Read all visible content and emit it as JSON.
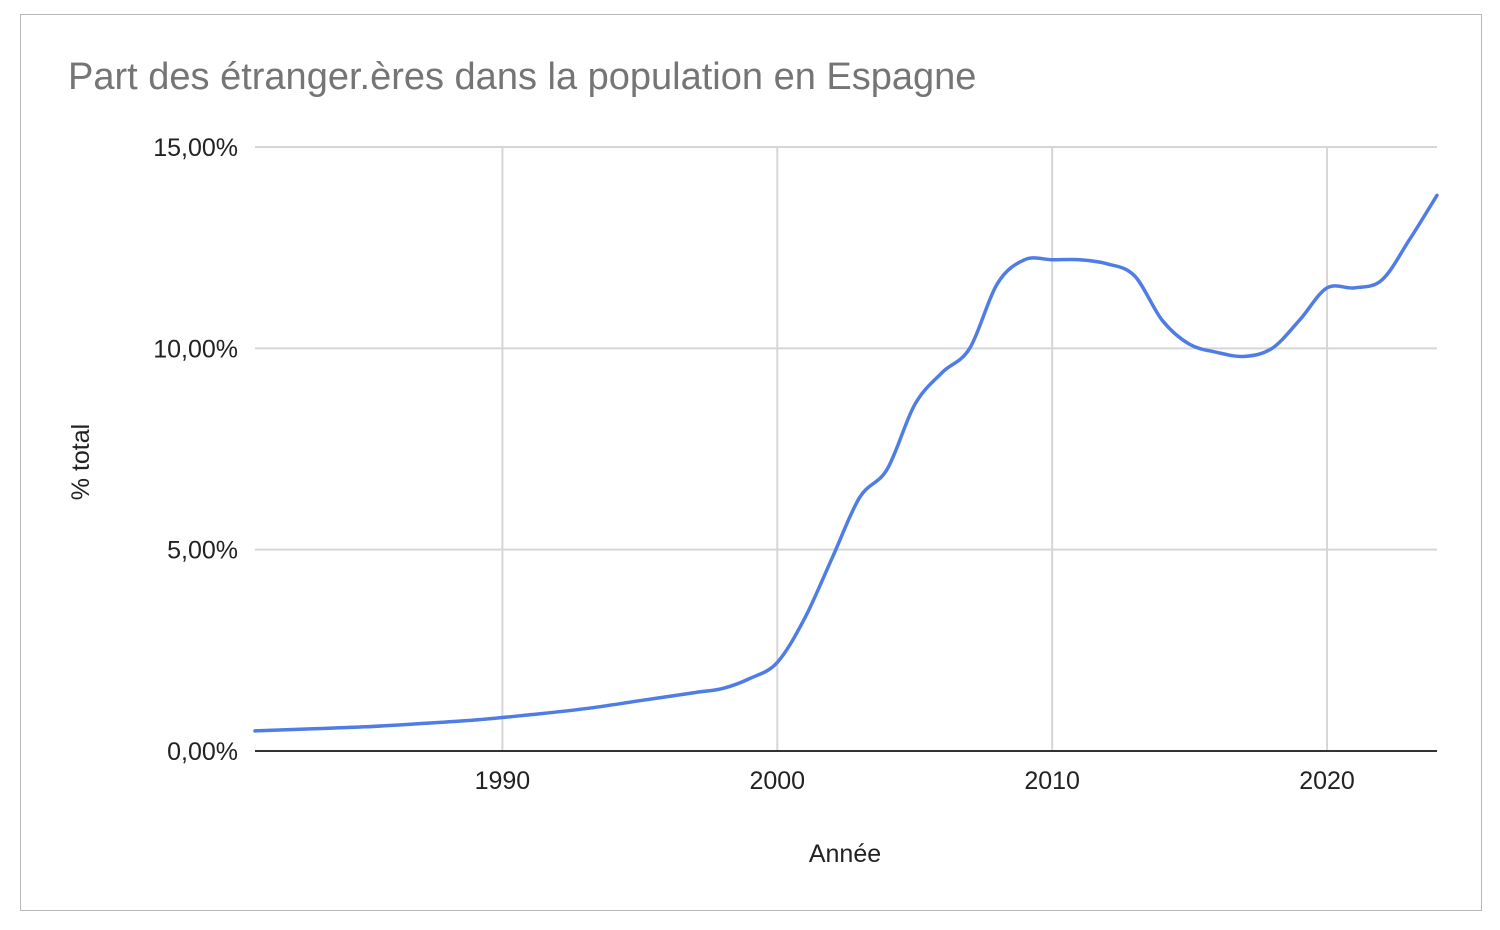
{
  "chart_data": {
    "type": "line",
    "title": "Part des étranger.ères dans la population en Espagne",
    "xlabel": "Année",
    "ylabel": "% total",
    "xlim": [
      1981,
      2024
    ],
    "ylim": [
      0,
      15
    ],
    "x_ticks": [
      1990,
      2000,
      2010,
      2020
    ],
    "x_tick_labels": [
      "1990",
      "2000",
      "2010",
      "2020"
    ],
    "y_ticks": [
      0,
      5,
      10,
      15
    ],
    "y_tick_labels": [
      "0,00%",
      "5,00%",
      "10,00%",
      "15,00%"
    ],
    "grid": true,
    "legend": "none",
    "series": [
      {
        "color": "#4f7de5",
        "x": [
          1981,
          1983,
          1985,
          1987,
          1989,
          1991,
          1993,
          1995,
          1997,
          1998,
          1999,
          2000,
          2001,
          2002,
          2003,
          2004,
          2005,
          2006,
          2007,
          2008,
          2009,
          2010,
          2011,
          2012,
          2013,
          2014,
          2015,
          2016,
          2017,
          2018,
          2019,
          2020,
          2021,
          2022,
          2023,
          2024
        ],
        "y": [
          0.5,
          0.55,
          0.6,
          0.68,
          0.77,
          0.9,
          1.05,
          1.25,
          1.45,
          1.55,
          1.8,
          2.2,
          3.3,
          4.8,
          6.3,
          7.0,
          8.6,
          9.4,
          10.0,
          11.6,
          12.2,
          12.2,
          12.2,
          12.1,
          11.8,
          10.7,
          10.1,
          9.9,
          9.8,
          10.0,
          10.7,
          11.5,
          11.5,
          11.7,
          12.7,
          13.8
        ]
      }
    ]
  }
}
